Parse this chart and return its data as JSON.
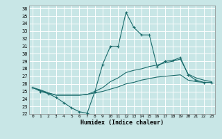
{
  "xlabel": "Humidex (Indice chaleur)",
  "xlim": [
    -0.5,
    23.5
  ],
  "ylim": [
    22,
    36.4
  ],
  "yticks": [
    22,
    23,
    24,
    25,
    26,
    27,
    28,
    29,
    30,
    31,
    32,
    33,
    34,
    35,
    36
  ],
  "xticks": [
    0,
    1,
    2,
    3,
    4,
    5,
    6,
    7,
    8,
    9,
    10,
    11,
    12,
    13,
    14,
    15,
    16,
    17,
    18,
    19,
    20,
    21,
    22,
    23
  ],
  "bg_color": "#c8e6e6",
  "grid_color": "#ffffff",
  "line_color": "#1a6b6b",
  "curve1_x": [
    0,
    1,
    2,
    3,
    4,
    5,
    6,
    7,
    8,
    9,
    10,
    11,
    12,
    13,
    14,
    15,
    16,
    17,
    18,
    19,
    20,
    21,
    22,
    23
  ],
  "curve1_y": [
    25.5,
    25.0,
    24.7,
    24.2,
    23.5,
    22.8,
    22.3,
    22.1,
    25.0,
    28.6,
    31.0,
    31.0,
    35.5,
    33.5,
    32.5,
    32.5,
    28.3,
    29.0,
    29.1,
    29.5,
    27.2,
    26.5,
    26.2,
    26.2
  ],
  "curve2_x": [
    0,
    1,
    2,
    3,
    4,
    5,
    6,
    7,
    8,
    9,
    10,
    11,
    12,
    13,
    14,
    15,
    16,
    17,
    18,
    19,
    20,
    21,
    22,
    23
  ],
  "curve2_y": [
    25.5,
    25.2,
    24.8,
    24.5,
    24.5,
    24.5,
    24.5,
    24.6,
    25.0,
    25.5,
    26.3,
    26.8,
    27.5,
    27.8,
    28.0,
    28.3,
    28.5,
    28.8,
    29.0,
    29.3,
    27.3,
    26.8,
    26.5,
    26.3
  ],
  "curve3_x": [
    0,
    1,
    2,
    3,
    4,
    5,
    6,
    7,
    8,
    9,
    10,
    11,
    12,
    13,
    14,
    15,
    16,
    17,
    18,
    19,
    20,
    21,
    22,
    23
  ],
  "curve3_y": [
    25.5,
    25.1,
    24.8,
    24.5,
    24.5,
    24.5,
    24.5,
    24.6,
    24.8,
    25.0,
    25.3,
    25.6,
    26.0,
    26.2,
    26.5,
    26.7,
    26.9,
    27.0,
    27.1,
    27.2,
    26.5,
    26.3,
    26.2,
    26.2
  ]
}
